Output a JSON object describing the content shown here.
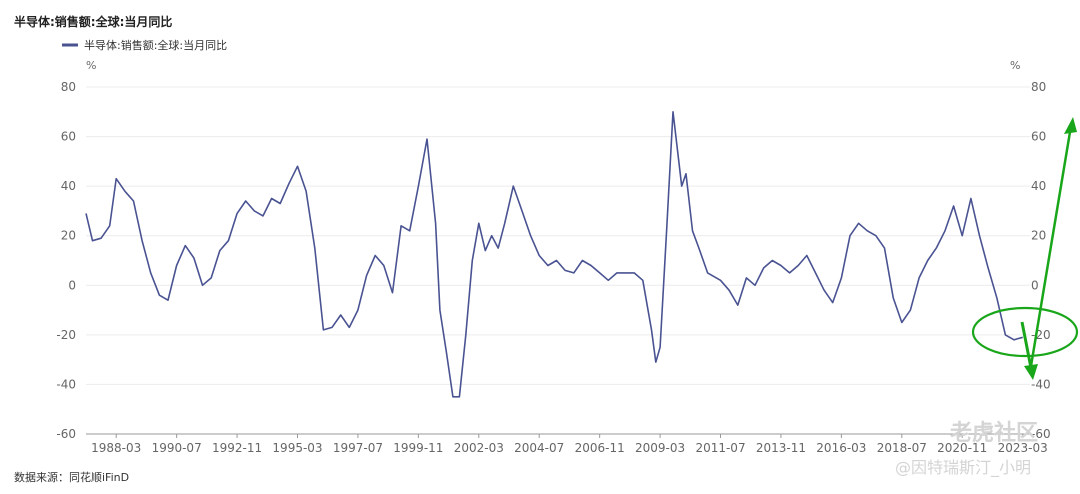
{
  "chart_data": {
    "type": "line",
    "title": "半导体:销售额:全球:当月同比",
    "legend": [
      "半导体:销售额:全球:当月同比"
    ],
    "legend_position": "top-left",
    "unit_left": "%",
    "unit_right": "%",
    "source": "数据来源：同花顺iFinD",
    "ylim": [
      -60,
      80
    ],
    "yticks": [
      -60,
      -40,
      -20,
      0,
      20,
      40,
      60,
      80
    ],
    "x_tick_labels": [
      "1988-03",
      "1990-07",
      "1992-11",
      "1995-03",
      "1997-07",
      "1999-11",
      "2002-03",
      "2004-07",
      "2006-11",
      "2009-03",
      "2011-07",
      "2013-11",
      "2016-03",
      "2018-07",
      "2020-11",
      "2023-03"
    ],
    "grid": true,
    "line_color": "#4a5392",
    "series": [
      {
        "name": "半导体:销售额:全球:当月同比",
        "x": [
          "1987-01",
          "1987-04",
          "1987-08",
          "1987-12",
          "1988-03",
          "1988-07",
          "1988-11",
          "1989-03",
          "1989-07",
          "1989-11",
          "1990-03",
          "1990-07",
          "1990-11",
          "1991-03",
          "1991-07",
          "1991-11",
          "1992-03",
          "1992-07",
          "1992-11",
          "1993-03",
          "1993-07",
          "1993-11",
          "1994-03",
          "1994-07",
          "1994-11",
          "1995-03",
          "1995-07",
          "1995-11",
          "1996-03",
          "1996-07",
          "1996-11",
          "1997-03",
          "1997-07",
          "1997-11",
          "1998-03",
          "1998-07",
          "1998-11",
          "1999-03",
          "1999-07",
          "1999-11",
          "2000-03",
          "2000-07",
          "2000-09",
          "2000-12",
          "2001-03",
          "2001-06",
          "2001-09",
          "2001-12",
          "2002-03",
          "2002-06",
          "2002-09",
          "2002-12",
          "2003-03",
          "2003-07",
          "2003-11",
          "2004-03",
          "2004-07",
          "2004-11",
          "2005-03",
          "2005-07",
          "2005-11",
          "2006-03",
          "2006-07",
          "2006-11",
          "2007-03",
          "2007-07",
          "2007-11",
          "2008-03",
          "2008-07",
          "2008-11",
          "2009-01",
          "2009-03",
          "2009-06",
          "2009-09",
          "2010-01",
          "2010-03",
          "2010-06",
          "2010-09",
          "2011-01",
          "2011-07",
          "2011-11",
          "2012-03",
          "2012-07",
          "2012-11",
          "2013-03",
          "2013-07",
          "2013-11",
          "2014-03",
          "2014-07",
          "2014-11",
          "2015-03",
          "2015-07",
          "2015-11",
          "2016-03",
          "2016-07",
          "2016-11",
          "2017-03",
          "2017-07",
          "2017-11",
          "2018-03",
          "2018-07",
          "2018-11",
          "2019-03",
          "2019-07",
          "2019-11",
          "2020-03",
          "2020-07",
          "2020-11",
          "2021-03",
          "2021-07",
          "2021-11",
          "2022-03",
          "2022-07",
          "2022-11",
          "2023-03"
        ],
        "values": [
          29,
          18,
          19,
          24,
          43,
          38,
          34,
          18,
          5,
          -4,
          -6,
          8,
          16,
          11,
          0,
          3,
          14,
          18,
          29,
          34,
          30,
          28,
          35,
          33,
          41,
          48,
          38,
          15,
          -18,
          -17,
          -12,
          -17,
          -10,
          4,
          12,
          8,
          -3,
          24,
          22,
          40,
          59,
          25,
          -10,
          -27,
          -45,
          -45,
          -20,
          10,
          25,
          14,
          20,
          15,
          25,
          40,
          30,
          20,
          12,
          8,
          10,
          6,
          5,
          10,
          8,
          5,
          2,
          5,
          5,
          5,
          2,
          -18,
          -31,
          -25,
          22,
          70,
          40,
          45,
          22,
          15,
          5,
          2,
          -2,
          -8,
          3,
          0,
          7,
          10,
          8,
          5,
          8,
          12,
          5,
          -2,
          -7,
          3,
          20,
          25,
          22,
          20,
          15,
          -5,
          -15,
          -10,
          3,
          10,
          15,
          22,
          32,
          20,
          35,
          20,
          7,
          -5,
          -20,
          -22,
          -21
        ]
      }
    ],
    "annotations": [
      {
        "type": "ellipse",
        "color": "#1aa61a",
        "label": "circled recent decline"
      },
      {
        "type": "arrow",
        "color": "#1aa61a",
        "direction": "down"
      },
      {
        "type": "arrow",
        "color": "#1aa61a",
        "direction": "up"
      }
    ]
  },
  "watermark": {
    "line1": "老虎社区",
    "line2": "@因特瑞斯汀_小明"
  }
}
